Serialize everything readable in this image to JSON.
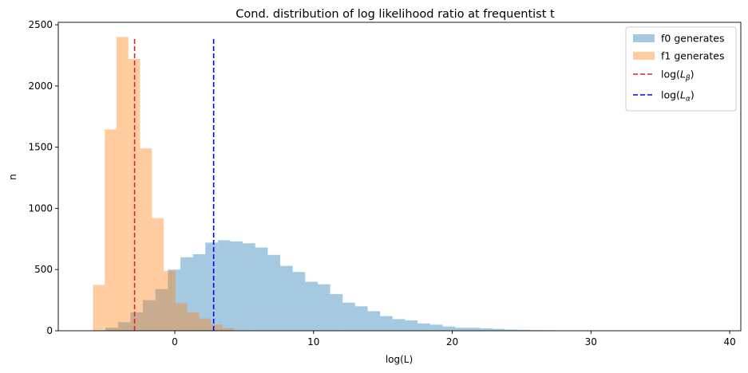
{
  "chart_data": {
    "type": "bar",
    "title": "Cond. distribution of log likelihood ratio at frequentist  t",
    "xlabel": "log(L)",
    "ylabel": "n",
    "xlim": [
      -8.4,
      40.8
    ],
    "ylim": [
      0,
      2520
    ],
    "xticks": [
      0,
      10,
      20,
      30,
      40
    ],
    "yticks": [
      0,
      500,
      1000,
      1500,
      2000,
      2500
    ],
    "grid": false,
    "legend_position": "top-right",
    "series": [
      {
        "name": "f0 generates",
        "color": "#1f77b4",
        "alpha": 0.4,
        "bin_edges": [
          -5.0,
          -4.1,
          -3.2,
          -2.3,
          -1.4,
          -0.5,
          0.4,
          1.3,
          2.2,
          3.1,
          4.0,
          4.9,
          5.8,
          6.7,
          7.6,
          8.5,
          9.4,
          10.3,
          11.2,
          12.1,
          13.0,
          13.9,
          14.8,
          15.7,
          16.6,
          17.5,
          18.4,
          19.3,
          20.2,
          21.1,
          22.0,
          22.9,
          23.8,
          24.7,
          25.6,
          26.5,
          27.4,
          28.3,
          29.2,
          30.1,
          31.0
        ],
        "counts": [
          25,
          70,
          150,
          250,
          340,
          500,
          600,
          625,
          720,
          740,
          730,
          715,
          680,
          620,
          530,
          480,
          400,
          380,
          300,
          230,
          200,
          160,
          120,
          95,
          85,
          60,
          50,
          35,
          25,
          25,
          20,
          15,
          10,
          8,
          5,
          4,
          3,
          2,
          1,
          1
        ]
      },
      {
        "name": "f1 generates",
        "color": "#ff7f0e",
        "alpha": 0.4,
        "bin_edges": [
          -5.9,
          -5.05,
          -4.2,
          -3.35,
          -2.5,
          -1.65,
          -0.8,
          0.05,
          0.9,
          1.75,
          2.6,
          3.45,
          4.3
        ],
        "counts": [
          375,
          1645,
          2400,
          2220,
          1490,
          920,
          490,
          225,
          150,
          100,
          50,
          20
        ]
      }
    ],
    "vlines": [
      {
        "name": "log(L_β)",
        "legend_main": "log(",
        "legend_sub_letter": "L",
        "legend_sub": "β",
        "legend_close": ")",
        "x": -2.9,
        "ymax": 2400,
        "color": "#d62728",
        "style": "dashed"
      },
      {
        "name": "log(L_α)",
        "legend_main": "log(",
        "legend_sub_letter": "L",
        "legend_sub": "α",
        "legend_close": ")",
        "x": 2.8,
        "ymax": 2400,
        "color": "#0000ff",
        "style": "dashed"
      }
    ]
  }
}
